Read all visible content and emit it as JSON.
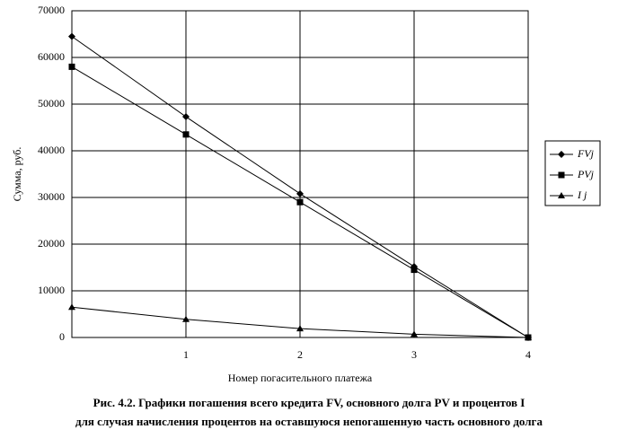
{
  "chart_data": {
    "type": "line",
    "title": "Рис. 4.2. Графики погашения всего кредита FV, основного долга PV и процентов I",
    "subtitle": "для случая начисления процентов на оставшуюся непогашенную часть основного долга",
    "x_label": "Номер погасительного платежа",
    "y_label": "Сумма, руб.",
    "x": [
      0,
      1,
      2,
      3,
      4
    ],
    "xlim": [
      0,
      4
    ],
    "xticks": [
      1,
      2,
      3,
      4
    ],
    "ylim": [
      0,
      70000
    ],
    "yticks": [
      0,
      10000,
      20000,
      30000,
      40000,
      50000,
      60000,
      70000
    ],
    "grid": true,
    "legend": "right",
    "series": [
      {
        "name": "FVj",
        "color": "#000000",
        "marker": "diamond",
        "values": [
          64500,
          47300,
          30800,
          15200,
          0
        ]
      },
      {
        "name": "PVj",
        "color": "#000000",
        "marker": "square",
        "values": [
          58000,
          43500,
          29000,
          14500,
          0
        ]
      },
      {
        "name": "I j",
        "color": "#000000",
        "marker": "triangle",
        "values": [
          6500,
          3900,
          1900,
          700,
          0
        ]
      }
    ]
  }
}
